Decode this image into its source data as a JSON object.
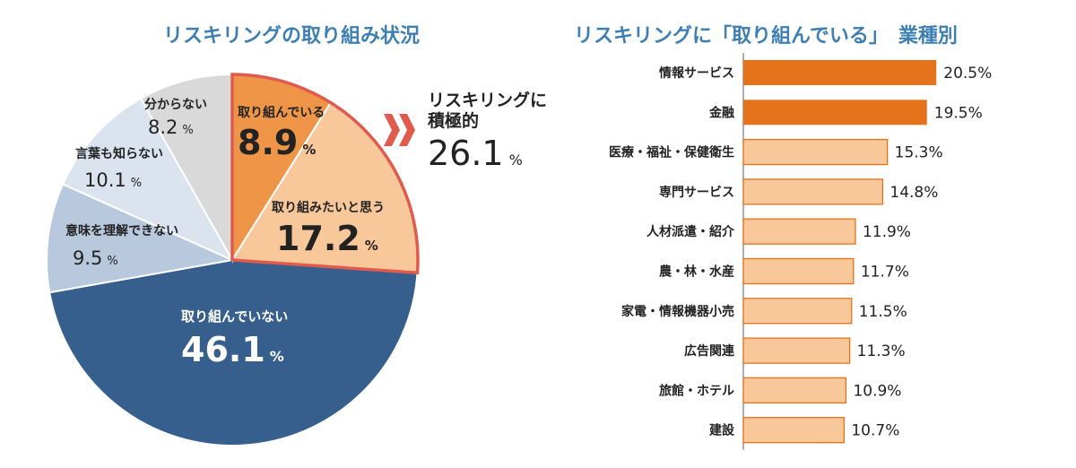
{
  "chart_data": [
    {
      "type": "pie",
      "title": "リスキリングの取り組み状況",
      "unit": "%",
      "slices": [
        {
          "label": "取り組んでいる",
          "value": 8.9,
          "display": "8.9",
          "color": "#ef9548"
        },
        {
          "label": "取り組みたいと思う",
          "value": 17.2,
          "display": "17.2",
          "color": "#f8c79a"
        },
        {
          "label": "取り組んでいない",
          "value": 46.1,
          "display": "46.1",
          "color": "#365f8e"
        },
        {
          "label": "意味を理解できない",
          "value": 9.5,
          "display": "9.5",
          "color": "#b8c9de"
        },
        {
          "label": "言葉も知らない",
          "value": 10.1,
          "display": "10.1",
          "color": "#dbe3ee"
        },
        {
          "label": "分からない",
          "value": 8.2,
          "display": "8.2",
          "color": "#d9d9d9"
        }
      ],
      "highlight_color": "#e05a4e",
      "callout": {
        "label_line1": "リスキリングに",
        "label_line2": "積極的",
        "value": "26.1",
        "unit": "%"
      }
    },
    {
      "type": "bar",
      "orientation": "horizontal",
      "title": "リスキリングに「取り組んでいる」　業種別",
      "unit": "%",
      "categories": [
        "情報サービス",
        "金融",
        "医療・福祉・保健衛生",
        "専門サービス",
        "人材派遣・紹介",
        "農・林・水産",
        "家電・情報機器小売",
        "広告関連",
        "旅館・ホテル",
        "建設"
      ],
      "values": [
        20.5,
        19.5,
        15.3,
        14.8,
        11.9,
        11.7,
        11.5,
        11.3,
        10.9,
        10.7
      ],
      "colors": {
        "top": "#e5731c",
        "other": "#f8c79a",
        "other_border": "#e5731c"
      },
      "highlight_top_n": 2,
      "xlim": [
        0,
        22
      ]
    }
  ]
}
